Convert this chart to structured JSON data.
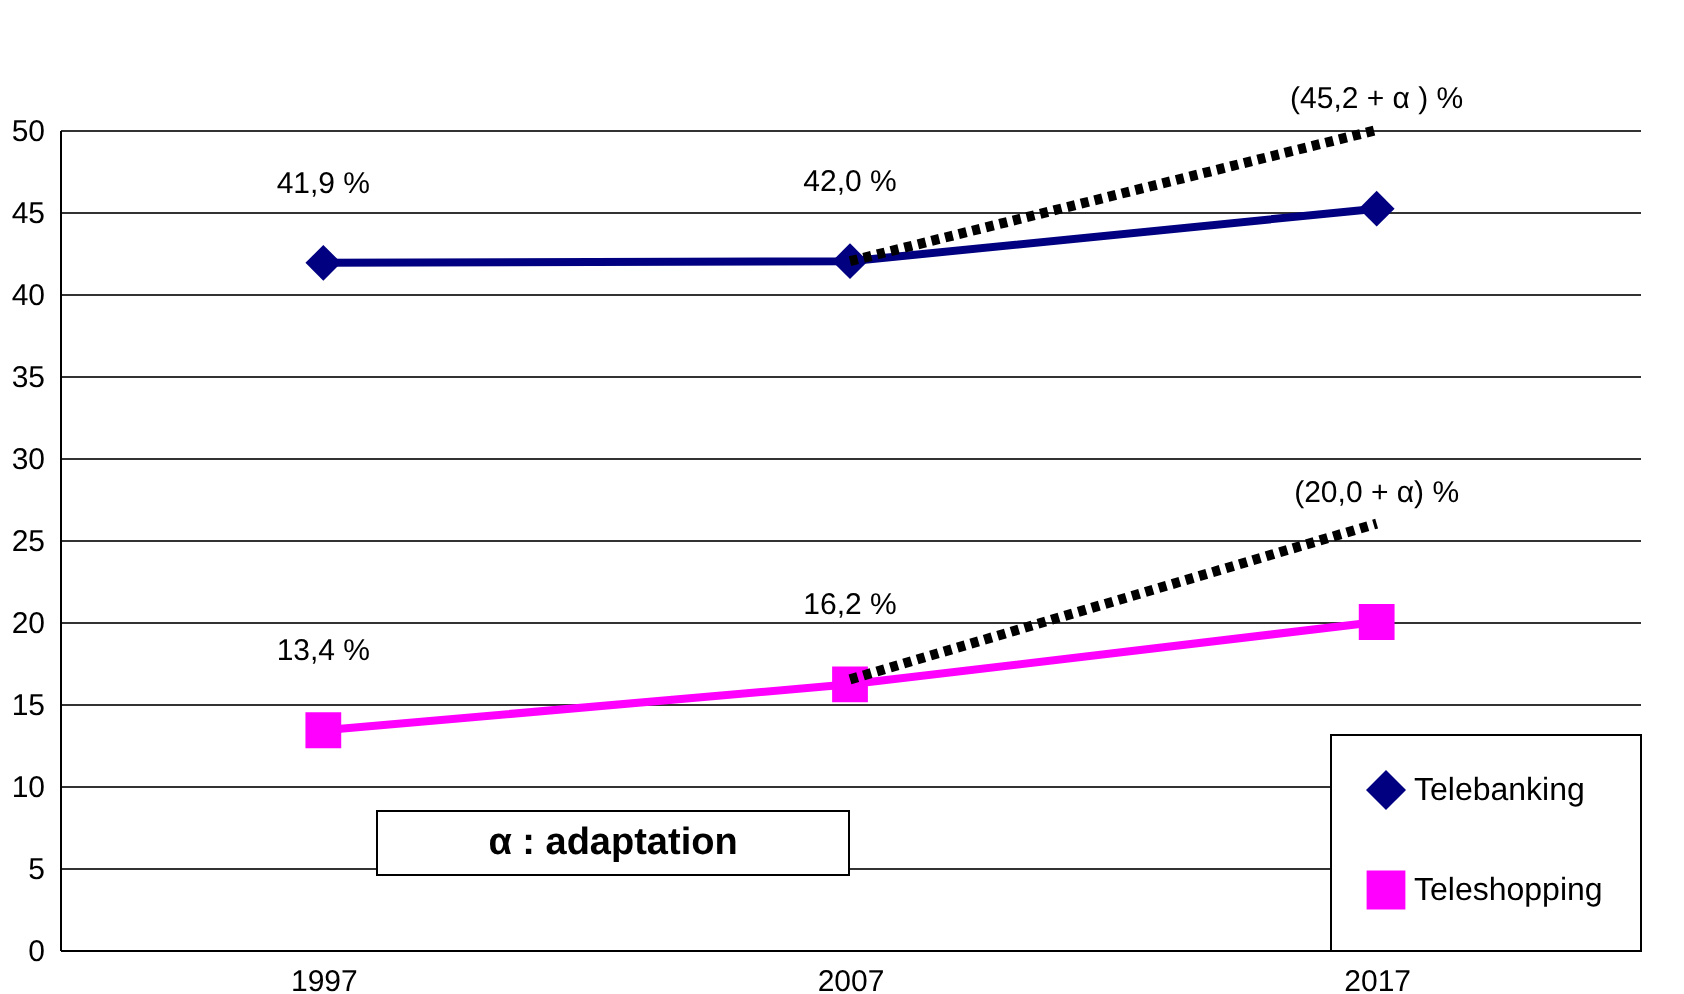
{
  "chart_data": {
    "type": "line",
    "categories": [
      "1997",
      "2007",
      "2017"
    ],
    "series": [
      {
        "name": "Telebanking",
        "color": "#000080",
        "marker": "diamond",
        "values": [
          41.9,
          42.0,
          45.2
        ],
        "value_labels": [
          "41,9 %",
          "42,0 %",
          null
        ]
      },
      {
        "name": "Teleshopping",
        "color": "#ff00ff",
        "marker": "square",
        "values": [
          13.4,
          16.2,
          20.0
        ],
        "value_labels": [
          "13,4 %",
          "16,2 %",
          null
        ]
      },
      {
        "color": "#000000",
        "line_style": "dotted",
        "values": [
          null,
          42.0,
          50.0
        ]
      },
      {
        "color": "#000000",
        "line_style": "dotted",
        "values": [
          null,
          16.5,
          26.0
        ]
      }
    ],
    "ylim": [
      0,
      50
    ],
    "yticks": [
      0,
      5,
      10,
      15,
      20,
      25,
      30,
      35,
      40,
      45,
      50
    ],
    "grid": "y",
    "legend": "bottom right",
    "annotations": [
      "α : adaptation",
      {
        "text": "(45,2 + α ) %",
        "x": "2017",
        "y": 50.0
      },
      {
        "text": "(20,0 +  α)  %",
        "x": "2017",
        "y": 26.0
      }
    ]
  }
}
